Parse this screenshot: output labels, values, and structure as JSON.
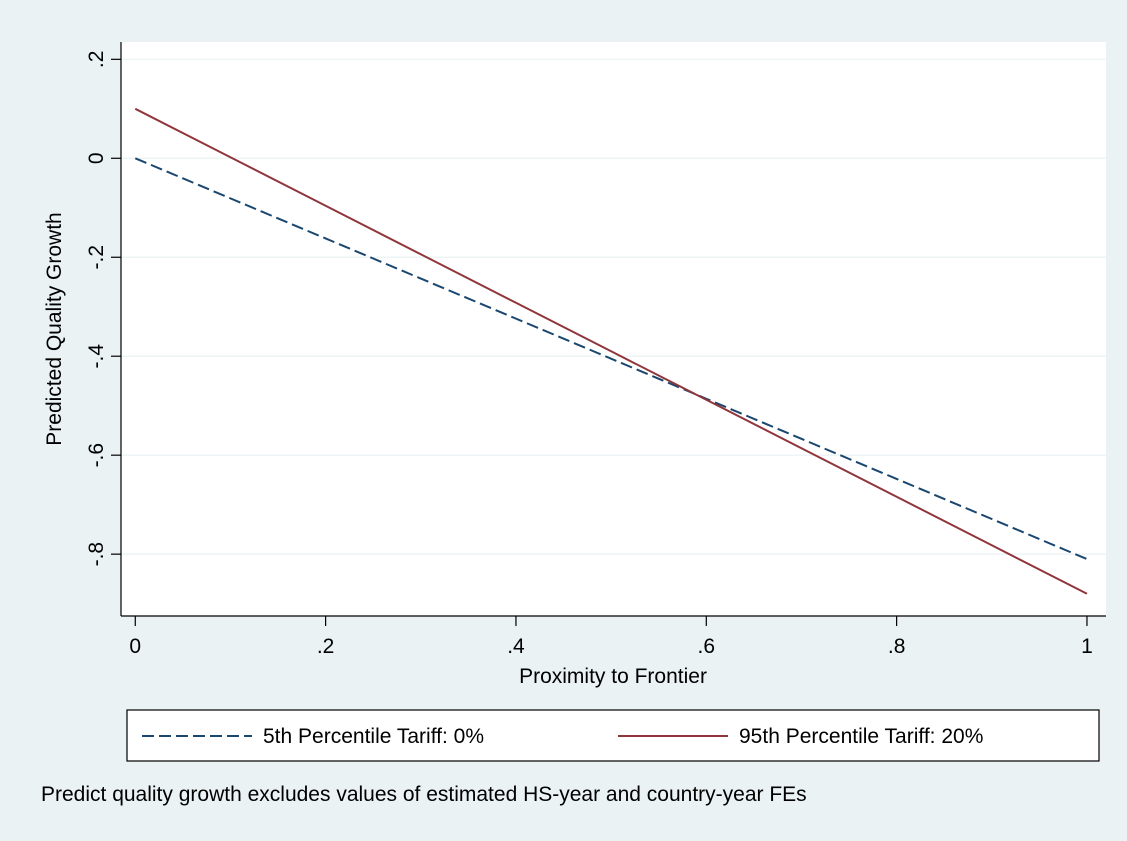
{
  "colors": {
    "background": "#eaf2f3",
    "plot_area": "#ffffff",
    "grid": "#eaf2f3",
    "axis": "#000000",
    "series_low": "#1a476f",
    "series_high": "#90353b",
    "legend_border": "#000000"
  },
  "note": "Predict quality growth excludes values of estimated HS-year and country-year FEs",
  "chart_data": {
    "type": "line",
    "title": "",
    "xlabel": "Proximity to Frontier",
    "ylabel": "Predicted Quality Growth",
    "xlim": [
      -0.015,
      1.02
    ],
    "ylim": [
      -0.925,
      0.235
    ],
    "x_ticks": [
      0,
      0.2,
      0.4,
      0.6,
      0.8,
      1
    ],
    "x_tick_labels": [
      "0",
      ".2",
      ".4",
      ".6",
      ".8",
      "1"
    ],
    "y_ticks": [
      -0.8,
      -0.6,
      -0.4,
      -0.2,
      0,
      0.2
    ],
    "y_tick_labels": [
      "-.8",
      "-.6",
      "-.4",
      "-.2",
      "0",
      ".2"
    ],
    "grid": true,
    "grid_axis": "y",
    "legend_position": "bottom",
    "series": [
      {
        "name": "5th Percentile Tariff: 0%",
        "style": "dashed",
        "color": "#1a476f",
        "x": [
          0,
          0.1,
          0.2,
          0.3,
          0.4,
          0.5,
          0.6,
          0.7,
          0.8,
          0.9,
          1
        ],
        "y": [
          0,
          -0.081,
          -0.162,
          -0.243,
          -0.324,
          -0.405,
          -0.486,
          -0.567,
          -0.648,
          -0.729,
          -0.81
        ]
      },
      {
        "name": "95th Percentile Tariff: 20%",
        "style": "solid",
        "color": "#90353b",
        "x": [
          0,
          0.1,
          0.2,
          0.3,
          0.4,
          0.5,
          0.6,
          0.7,
          0.8,
          0.9,
          1
        ],
        "y": [
          0.1,
          0.002,
          -0.096,
          -0.194,
          -0.292,
          -0.39,
          -0.488,
          -0.586,
          -0.684,
          -0.782,
          -0.88
        ]
      }
    ]
  }
}
